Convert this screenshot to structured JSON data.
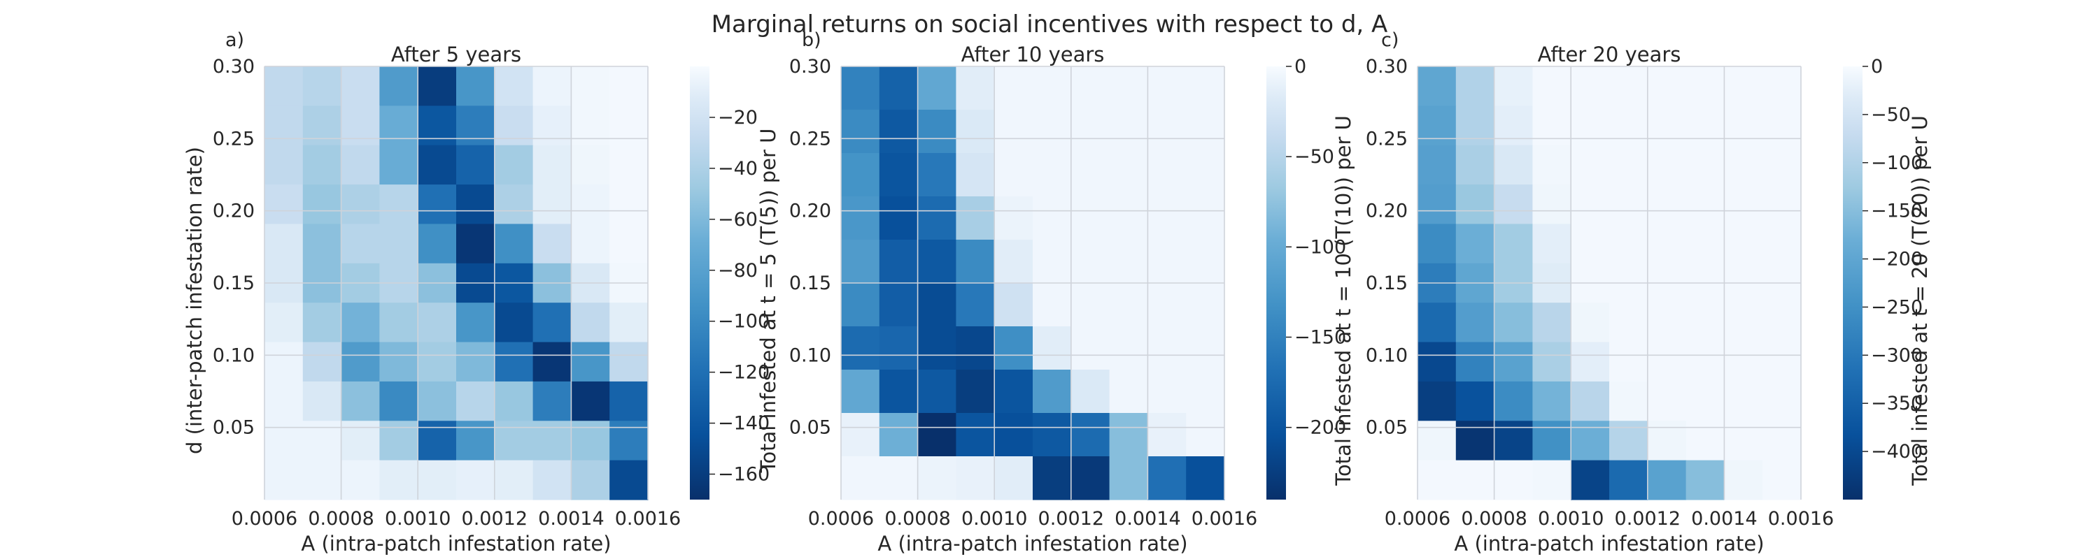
{
  "suptitle": "Marginal returns on social incentives with respect to d, A",
  "chart_data": [
    {
      "type": "heatmap",
      "panel_label": "a)",
      "title": "After 5 years",
      "xlabel": "A (intra-patch infestation rate)",
      "ylabel": "d (inter-patch infestation rate)",
      "colorbar_label": "Total infested at t = 5 (T(5)) per U",
      "x_ticks": [
        "0.0006",
        "0.0008",
        "0.0010",
        "0.0012",
        "0.0014",
        "0.0016"
      ],
      "y_ticks": [
        "0.05",
        "0.10",
        "0.15",
        "0.20",
        "0.25",
        "0.30"
      ],
      "xlim": [
        0.0006,
        0.0016
      ],
      "ylim": [
        0.0,
        0.3
      ],
      "colorbar_ticks": [
        -20,
        -40,
        -60,
        -80,
        -100,
        -120,
        -140,
        -160
      ],
      "colorbar_tick_labels": [
        "−20",
        "−40",
        "−60",
        "−80",
        "−100",
        "−120",
        "−140",
        "−160"
      ],
      "vmin": -170,
      "vmax": 0,
      "colormap": "Blues_r",
      "grid": true,
      "z_rows_top_to_bottom": [
        [
          -30,
          -35,
          -25,
          -85,
          -160,
          -90,
          -20,
          -5,
          -3,
          -2
        ],
        [
          -30,
          -40,
          -25,
          -70,
          -140,
          -110,
          -25,
          -8,
          -3,
          -2
        ],
        [
          -30,
          -45,
          -30,
          -70,
          -150,
          -130,
          -45,
          -10,
          -4,
          -2
        ],
        [
          -25,
          -50,
          -40,
          -35,
          -120,
          -150,
          -40,
          -10,
          -5,
          -2
        ],
        [
          -15,
          -55,
          -35,
          -35,
          -95,
          -165,
          -95,
          -25,
          -5,
          -2
        ],
        [
          -15,
          -55,
          -45,
          -35,
          -55,
          -150,
          -140,
          -55,
          -15,
          -3
        ],
        [
          -10,
          -45,
          -65,
          -45,
          -40,
          -90,
          -150,
          -120,
          -30,
          -10
        ],
        [
          -5,
          -30,
          -85,
          -60,
          -45,
          -60,
          -120,
          -165,
          -90,
          -30
        ],
        [
          -5,
          -15,
          -55,
          -100,
          -55,
          -35,
          -50,
          -110,
          -165,
          -130
        ],
        [
          -5,
          -5,
          -10,
          -45,
          -130,
          -90,
          -45,
          -45,
          -50,
          -110
        ],
        [
          -5,
          -5,
          -5,
          -10,
          -10,
          -8,
          -10,
          -20,
          -40,
          -150
        ]
      ]
    },
    {
      "type": "heatmap",
      "panel_label": "b)",
      "title": "After 10 years",
      "xlabel": "A (intra-patch infestation rate)",
      "ylabel": "Total infested at t = 10 (T(10)) per U",
      "colorbar_label": "",
      "x_ticks": [
        "0.0006",
        "0.0008",
        "0.0010",
        "0.0012",
        "0.0014",
        "0.0016"
      ],
      "y_ticks": [
        "0.05",
        "0.10",
        "0.15",
        "0.20",
        "0.25",
        "0.30"
      ],
      "xlim": [
        0.0006,
        0.0016
      ],
      "ylim": [
        0.0,
        0.3
      ],
      "colorbar_ticks": [
        0,
        -50,
        -100,
        -150,
        -200
      ],
      "colorbar_tick_labels": [
        "0",
        "−50",
        "−100",
        "−150",
        "−200"
      ],
      "vmin": -240,
      "vmax": 0,
      "colormap": "Blues_r",
      "grid": true,
      "z_rows_top_to_bottom": [
        [
          -150,
          -185,
          -105,
          -15,
          -5,
          -5,
          -5,
          -5,
          -5,
          -5
        ],
        [
          -140,
          -195,
          -140,
          -20,
          -5,
          -5,
          -5,
          -5,
          -5,
          -5
        ],
        [
          -130,
          -200,
          -160,
          -25,
          -5,
          -5,
          -5,
          -5,
          -5,
          -5
        ],
        [
          -125,
          -205,
          -175,
          -60,
          -8,
          -5,
          -5,
          -5,
          -5,
          -5
        ],
        [
          -120,
          -190,
          -195,
          -140,
          -15,
          -5,
          -5,
          -5,
          -5,
          -5
        ],
        [
          -140,
          -190,
          -210,
          -160,
          -30,
          -5,
          -5,
          -5,
          -5,
          -5
        ],
        [
          -175,
          -180,
          -210,
          -215,
          -135,
          -15,
          -5,
          -5,
          -5,
          -5
        ],
        [
          -105,
          -200,
          -195,
          -225,
          -200,
          -120,
          -20,
          -5,
          -5,
          -5
        ],
        [
          -10,
          -95,
          -240,
          -200,
          -205,
          -195,
          -175,
          -80,
          -10,
          -5
        ],
        [
          -5,
          -5,
          -8,
          -10,
          -15,
          -225,
          -230,
          -80,
          -170,
          -205
        ]
      ]
    },
    {
      "type": "heatmap",
      "panel_label": "c)",
      "title": "After 20 years",
      "xlabel": "A (intra-patch infestation rate)",
      "ylabel": "Total infested at t = 20 (T(20)) per U",
      "colorbar_label": "",
      "x_ticks": [
        "0.0006",
        "0.0008",
        "0.0010",
        "0.0012",
        "0.0014",
        "0.0016"
      ],
      "y_ticks": [
        "0.05",
        "0.10",
        "0.15",
        "0.20",
        "0.25",
        "0.30"
      ],
      "xlim": [
        0.0006,
        0.0016
      ],
      "ylim": [
        0.0,
        0.3
      ],
      "colorbar_ticks": [
        0,
        -50,
        -100,
        -150,
        -200,
        -250,
        -300,
        -350,
        -400
      ],
      "colorbar_tick_labels": [
        "0",
        "−50",
        "−100",
        "−150",
        "−200",
        "−250",
        "−300",
        "−350",
        "−400"
      ],
      "vmin": -450,
      "vmax": 0,
      "colormap": "Blues_r",
      "grid": true,
      "z_rows_top_to_bottom": [
        [
          -200,
          -100,
          -20,
          -5,
          -5,
          -5,
          -5,
          -5,
          -5,
          -5
        ],
        [
          -210,
          -100,
          -25,
          -5,
          -5,
          -5,
          -5,
          -5,
          -5,
          -5
        ],
        [
          -215,
          -110,
          -40,
          -8,
          -5,
          -5,
          -5,
          -5,
          -5,
          -5
        ],
        [
          -220,
          -130,
          -70,
          -10,
          -5,
          -5,
          -5,
          -5,
          -5,
          -5
        ],
        [
          -260,
          -180,
          -120,
          -25,
          -5,
          -5,
          -5,
          -5,
          -5,
          -5
        ],
        [
          -290,
          -200,
          -120,
          -30,
          -5,
          -5,
          -5,
          -5,
          -5,
          -5
        ],
        [
          -330,
          -220,
          -150,
          -90,
          -10,
          -5,
          -5,
          -5,
          -5,
          -5
        ],
        [
          -400,
          -280,
          -210,
          -110,
          -25,
          -5,
          -5,
          -5,
          -5,
          -5
        ],
        [
          -420,
          -380,
          -260,
          -170,
          -90,
          -8,
          -5,
          -5,
          -5,
          -5
        ],
        [
          -10,
          -440,
          -410,
          -250,
          -180,
          -95,
          -10,
          -5,
          -5,
          -5
        ],
        [
          -5,
          -5,
          -5,
          -8,
          -410,
          -330,
          -210,
          -150,
          -10,
          -5
        ]
      ]
    }
  ]
}
